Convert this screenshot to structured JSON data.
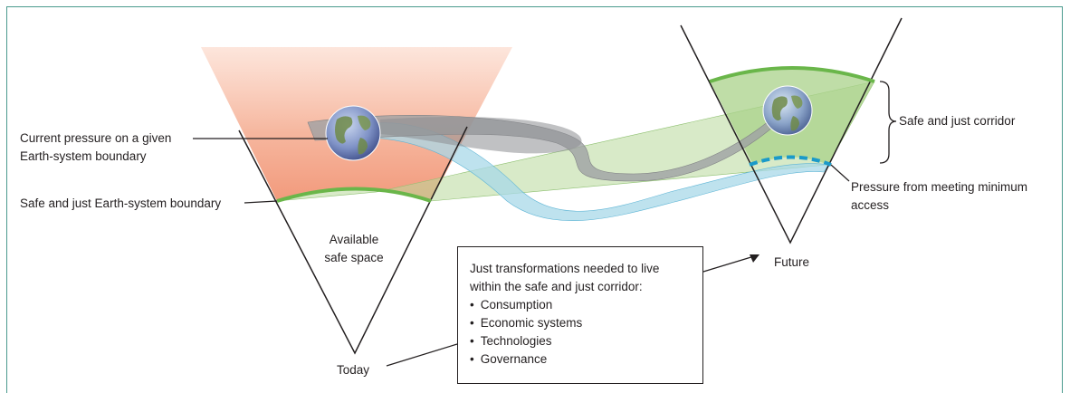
{
  "labels": {
    "current_pressure_line1": "Current pressure on a given",
    "current_pressure_line2": "Earth-system boundary",
    "safe_just_boundary": "Safe and just Earth-system boundary",
    "available_line1": "Available",
    "available_line2": "safe space",
    "today": "Today",
    "future": "Future",
    "safe_just_corridor": "Safe and just corridor",
    "min_access_line1": "Pressure from meeting minimum",
    "min_access_line2": "access"
  },
  "transformations_box": {
    "heading_line1": "Just transformations needed to live",
    "heading_line2": "within the safe and just corridor:",
    "items": [
      "Consumption",
      "Economic systems",
      "Technologies",
      "Governance"
    ]
  },
  "colors": {
    "frame": "#4a9a8e",
    "boundary_green": "#6ab64a",
    "corridor_fill": "#b8d99a",
    "pressure_gradient_top": "#fde3d8",
    "pressure_gradient_bottom": "#f4a586",
    "grey_ribbon": "#b5b6b8",
    "blue_ribbon": "#a8d8e8",
    "min_access_dash": "#1a9ac9",
    "line": "#231f20"
  }
}
